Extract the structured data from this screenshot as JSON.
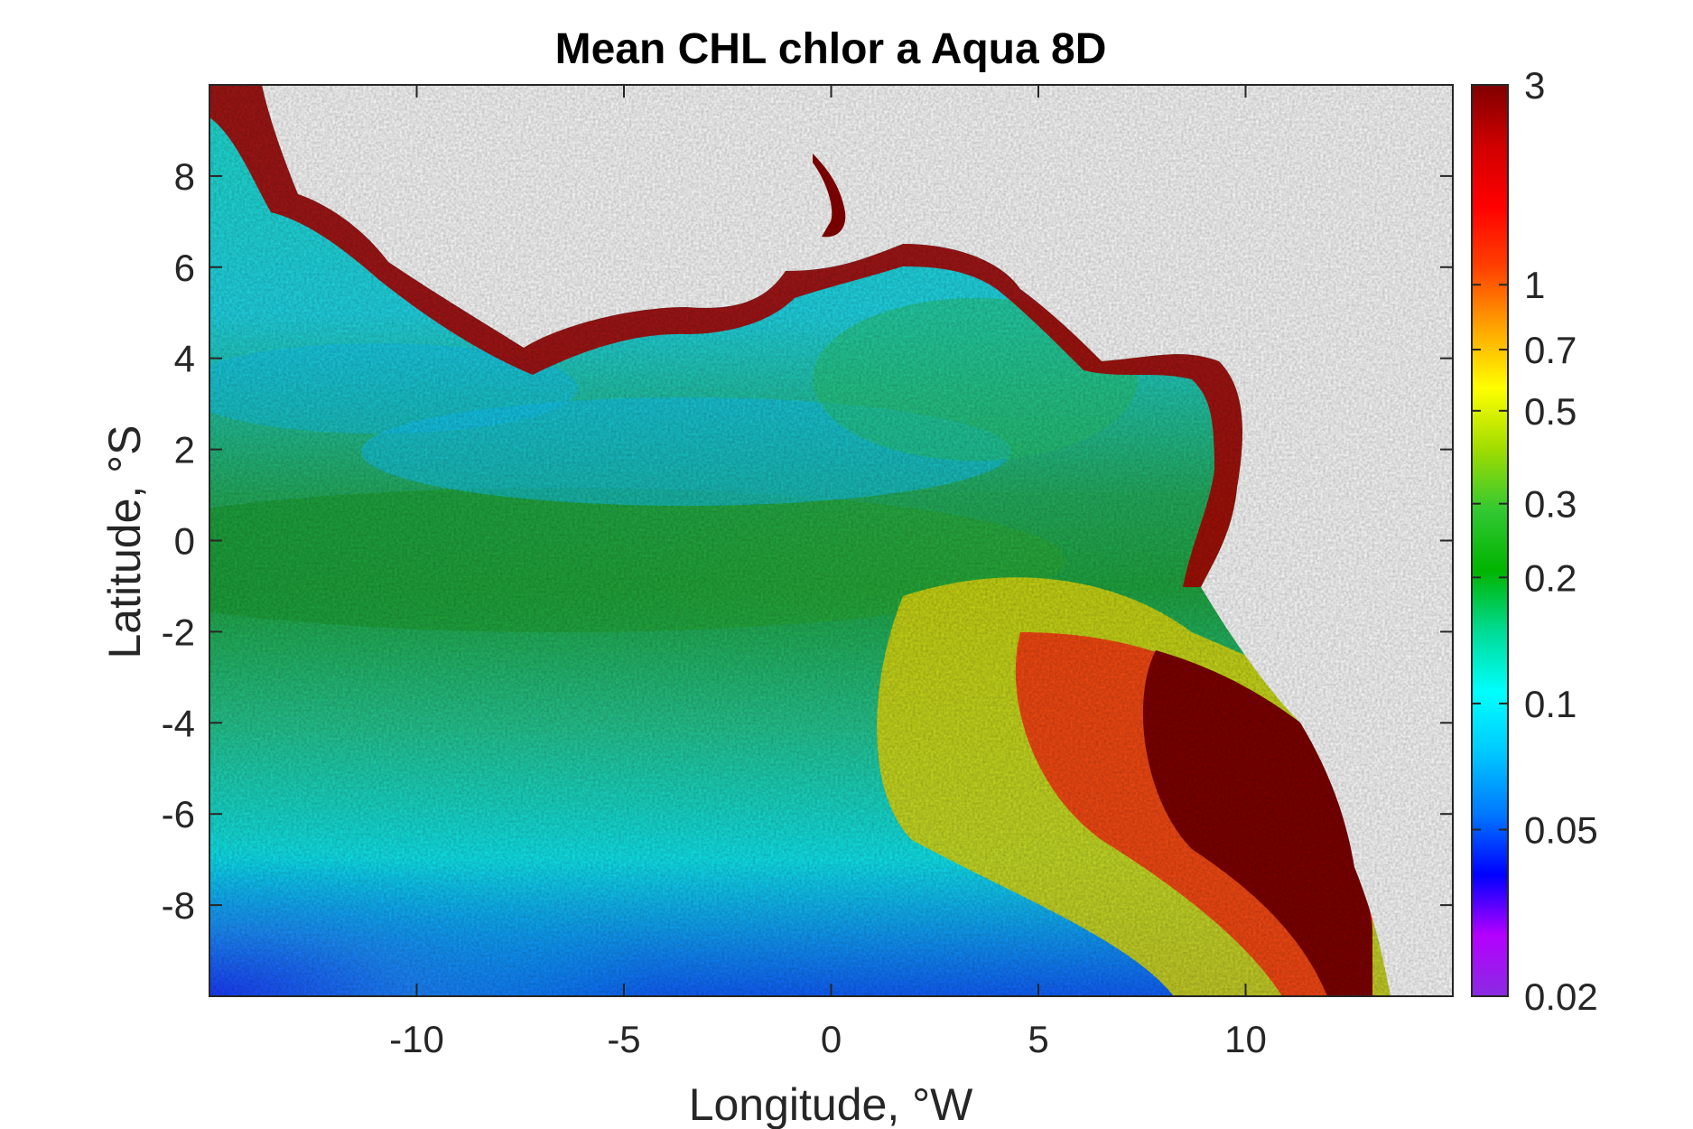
{
  "chart_data": {
    "type": "heatmap",
    "title": "Mean CHL chlor a Aqua 8D",
    "xlabel": "Longitude, °W",
    "ylabel": "Latitude, °S",
    "xlim": [
      -15,
      15
    ],
    "ylim": [
      -10,
      10
    ],
    "x_ticks": [
      {
        "value": -10,
        "label": "-10"
      },
      {
        "value": -5,
        "label": "-5"
      },
      {
        "value": 0,
        "label": "0"
      },
      {
        "value": 5,
        "label": "5"
      },
      {
        "value": 10,
        "label": "10"
      }
    ],
    "y_ticks": [
      {
        "value": 8,
        "label": "8"
      },
      {
        "value": 6,
        "label": "6"
      },
      {
        "value": 4,
        "label": "4"
      },
      {
        "value": 2,
        "label": "2"
      },
      {
        "value": 0,
        "label": "0"
      },
      {
        "value": -2,
        "label": "-2"
      },
      {
        "value": -4,
        "label": "-4"
      },
      {
        "value": -6,
        "label": "-6"
      },
      {
        "value": -8,
        "label": "-8"
      }
    ],
    "colorbar": {
      "scale": "log",
      "range": [
        0.02,
        3
      ],
      "ticks": [
        {
          "value": 3,
          "label": "3"
        },
        {
          "value": 1,
          "label": "1"
        },
        {
          "value": 0.7,
          "label": "0.7"
        },
        {
          "value": 0.5,
          "label": "0.5"
        },
        {
          "value": 0.3,
          "label": "0.3"
        },
        {
          "value": 0.2,
          "label": "0.2"
        },
        {
          "value": 0.1,
          "label": "0.1"
        },
        {
          "value": 0.05,
          "label": "0.05"
        },
        {
          "value": 0.02,
          "label": "0.02"
        }
      ],
      "colormap": [
        "#8a2be2",
        "#b400ff",
        "#0000ff",
        "#0078ff",
        "#00c8ff",
        "#00ffff",
        "#00dc96",
        "#00b400",
        "#32c832",
        "#a0dc00",
        "#ffff00",
        "#ffa500",
        "#ff4000",
        "#ff0000",
        "#d00000",
        "#800000"
      ]
    },
    "grid": false
  }
}
